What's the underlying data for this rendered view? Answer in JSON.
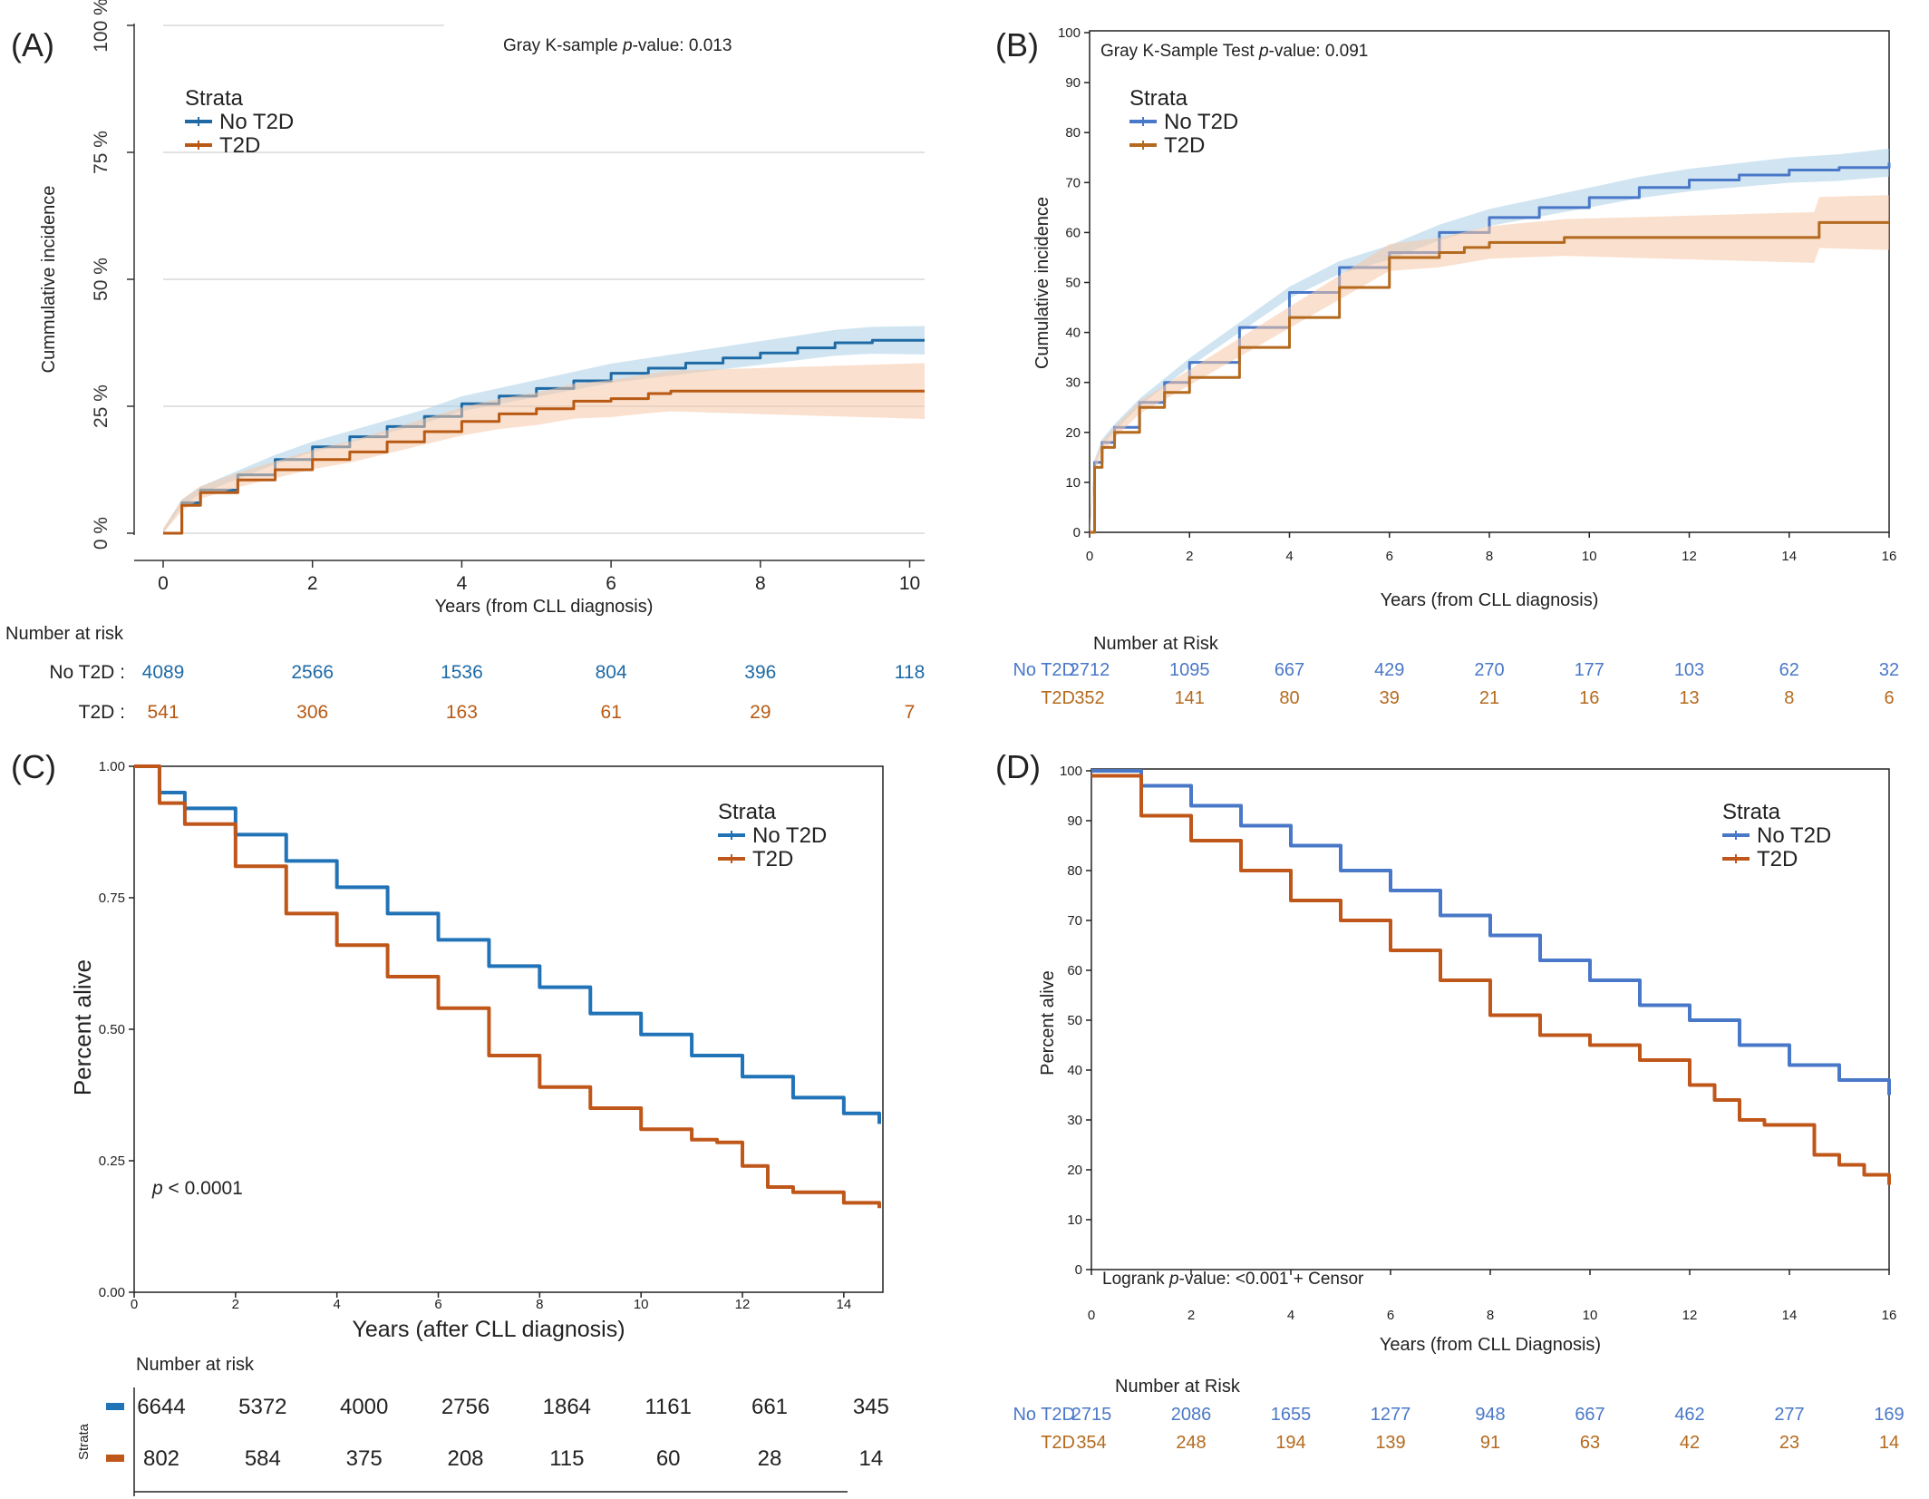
{
  "colors": {
    "blue_a": "#1f6aa5",
    "orange_a": "#b85a14",
    "blue_b": "#4a78c8",
    "orange_b": "#b46a1e",
    "blue_c": "#2173b8",
    "orange_c": "#c0571a",
    "band_blue": "#a9cfe6",
    "band_orange": "#f6c7a6"
  },
  "chart_data": [
    {
      "panel": "(A)",
      "type": "line",
      "annotation": {
        "prefix": "Gray K-sample ",
        "p": "p",
        "suffix": "-value: 0.013"
      },
      "ylabel": "Cummulative incidence",
      "xlabel": "Years (from CLL diagnosis)",
      "xlim": [
        0,
        10.2
      ],
      "ylim": [
        0,
        100
      ],
      "xticks": [
        "0",
        "2",
        "4",
        "6",
        "8",
        "10"
      ],
      "yticks": [
        "0 %",
        "25 %",
        "50 %",
        "75 %",
        "100 %"
      ],
      "grid": true,
      "legend": {
        "title": "Strata",
        "position": "top-left",
        "entries": [
          "No T2D",
          "T2D"
        ]
      },
      "series": [
        {
          "name": "No T2D",
          "color": "blue_a",
          "ci": true,
          "x": [
            0,
            0.25,
            0.5,
            1,
            1.5,
            2,
            2.5,
            3,
            3.5,
            4,
            4.5,
            5,
            5.5,
            6,
            6.5,
            7,
            7.5,
            8,
            8.5,
            9,
            9.5,
            10,
            10.2
          ],
          "y": [
            0,
            6,
            8.5,
            11.5,
            14.5,
            17,
            19,
            21,
            23,
            25.5,
            27,
            28.5,
            30,
            31.5,
            32.5,
            33.5,
            34.5,
            35.5,
            36.5,
            37.5,
            38,
            38,
            38
          ]
        },
        {
          "name": "T2D",
          "color": "orange_a",
          "ci": true,
          "x": [
            0,
            0.25,
            0.5,
            1,
            1.5,
            2,
            2.5,
            3,
            3.5,
            4,
            4.5,
            5,
            5.5,
            6,
            6.5,
            6.8,
            8,
            10.2
          ],
          "y": [
            0,
            5.5,
            8,
            10.5,
            12.5,
            14.5,
            16,
            18,
            20,
            22,
            23.5,
            24.5,
            26,
            26.5,
            27.5,
            28,
            28,
            28
          ]
        }
      ],
      "risk_table": {
        "title": "Number at risk",
        "rows": [
          {
            "label": "No T2D :",
            "values": [
              "4089",
              "2566",
              "1536",
              "804",
              "396",
              "118"
            ]
          },
          {
            "label": "T2D :",
            "values": [
              "541",
              "306",
              "163",
              "61",
              "29",
              "7"
            ]
          }
        ]
      }
    },
    {
      "panel": "(B)",
      "type": "line",
      "annotation": {
        "prefix": "Gray K-Sample Test ",
        "p": "p",
        "suffix": "-value: 0.091"
      },
      "ylabel": "Cumulative incidence",
      "xlabel": "Years (from CLL diagnosis)",
      "xlim": [
        0,
        16
      ],
      "ylim": [
        0,
        100
      ],
      "xticks": [
        "0",
        "2",
        "4",
        "6",
        "8",
        "10",
        "12",
        "14",
        "16"
      ],
      "yticks": [
        "0",
        "10",
        "20",
        "30",
        "40",
        "50",
        "60",
        "70",
        "80",
        "90",
        "100"
      ],
      "grid": false,
      "legend": {
        "title": "Strata",
        "position": "top-left",
        "entries": [
          "No T2D",
          "T2D"
        ]
      },
      "series": [
        {
          "name": "No T2D",
          "color": "blue_b",
          "ci": true,
          "x": [
            0,
            0.1,
            0.25,
            0.5,
            1,
            1.5,
            2,
            3,
            4,
            5,
            6,
            7,
            8,
            9,
            10,
            11,
            12,
            13,
            14,
            15,
            16
          ],
          "y": [
            0,
            14,
            18,
            21,
            26,
            30,
            34,
            41,
            48,
            53,
            56,
            60,
            63,
            65,
            67,
            69,
            70.5,
            71.5,
            72.5,
            73,
            74
          ]
        },
        {
          "name": "T2D",
          "color": "orange_b",
          "ci": true,
          "x": [
            0,
            0.1,
            0.25,
            0.5,
            1,
            1.5,
            2,
            3,
            4,
            5,
            6,
            7,
            7.5,
            8,
            9.5,
            14.5,
            14.6,
            16
          ],
          "y": [
            0,
            13,
            17,
            20,
            25,
            28,
            31,
            37,
            43,
            49,
            55,
            56,
            57,
            58,
            59,
            59,
            62,
            62
          ]
        }
      ],
      "risk_table": {
        "title": "Number at Risk",
        "rows": [
          {
            "label": "No T2D",
            "values": [
              "2712",
              "1095",
              "667",
              "429",
              "270",
              "177",
              "103",
              "62",
              "32"
            ]
          },
          {
            "label": "T2D",
            "values": [
              "352",
              "141",
              "80",
              "39",
              "21",
              "16",
              "13",
              "8",
              "6"
            ]
          }
        ]
      }
    },
    {
      "panel": "(C)",
      "type": "line",
      "annotation": {
        "prefix": "",
        "p": "p",
        "suffix": " < 0.0001"
      },
      "ylabel": "Percent alive",
      "xlabel": "Years (after CLL diagnosis)",
      "xlim": [
        0,
        14.7
      ],
      "ylim": [
        0,
        1
      ],
      "xticks": [
        "0",
        "2",
        "4",
        "6",
        "8",
        "10",
        "12",
        "14"
      ],
      "yticks": [
        "0.00",
        "0.25",
        "0.50",
        "0.75",
        "1.00"
      ],
      "grid": false,
      "legend": {
        "title": "Strata",
        "position": "top-right",
        "entries": [
          "No T2D",
          "T2D"
        ]
      },
      "series": [
        {
          "name": "No T2D",
          "color": "blue_c",
          "ci": false,
          "x": [
            0,
            0.5,
            1,
            2,
            3,
            4,
            5,
            6,
            7,
            8,
            9,
            10,
            11,
            12,
            13,
            14,
            14.7
          ],
          "y": [
            1,
            0.95,
            0.92,
            0.87,
            0.82,
            0.77,
            0.72,
            0.67,
            0.62,
            0.58,
            0.53,
            0.49,
            0.45,
            0.41,
            0.37,
            0.34,
            0.32
          ]
        },
        {
          "name": "T2D",
          "color": "orange_c",
          "ci": false,
          "x": [
            0,
            0.5,
            1,
            2,
            3,
            4,
            5,
            6,
            7,
            8,
            9,
            10,
            11,
            11.5,
            12,
            12.5,
            13,
            13.5,
            14,
            14.7
          ],
          "y": [
            1,
            0.93,
            0.89,
            0.81,
            0.72,
            0.66,
            0.6,
            0.54,
            0.45,
            0.39,
            0.35,
            0.31,
            0.29,
            0.285,
            0.24,
            0.2,
            0.19,
            0.19,
            0.17,
            0.16
          ]
        }
      ],
      "risk_table": {
        "title": "Number at risk",
        "side_label": "Strata",
        "rows": [
          {
            "label": "",
            "values": [
              "6644",
              "5372",
              "4000",
              "2756",
              "1864",
              "1161",
              "661",
              "345"
            ]
          },
          {
            "label": "",
            "values": [
              "802",
              "584",
              "375",
              "208",
              "115",
              "60",
              "28",
              "14"
            ]
          }
        ]
      }
    },
    {
      "panel": "(D)",
      "type": "line",
      "annotation": {
        "prefix": "Logrank ",
        "p": "p",
        "suffix": "-value:  <0.001 + Censor"
      },
      "ylabel": "Percent alive",
      "xlabel": "Years (from CLL Diagnosis)",
      "xlim": [
        0,
        16
      ],
      "ylim": [
        0,
        100
      ],
      "xticks": [
        "0",
        "2",
        "4",
        "6",
        "8",
        "10",
        "12",
        "14",
        "16"
      ],
      "yticks": [
        "0",
        "10",
        "20",
        "30",
        "40",
        "50",
        "60",
        "70",
        "80",
        "90",
        "100"
      ],
      "grid": false,
      "legend": {
        "title": "Strata",
        "position": "top-right",
        "entries": [
          "No T2D",
          "T2D"
        ]
      },
      "series": [
        {
          "name": "No T2D",
          "color": "blue_b",
          "ci": false,
          "x": [
            0,
            1,
            2,
            3,
            4,
            5,
            6,
            7,
            8,
            9,
            10,
            11,
            12,
            13,
            14,
            15,
            16
          ],
          "y": [
            100,
            97,
            93,
            89,
            85,
            80,
            76,
            71,
            67,
            62,
            58,
            53,
            50,
            45,
            41,
            38,
            35
          ]
        },
        {
          "name": "T2D",
          "color": "orange_c",
          "ci": false,
          "x": [
            0,
            1,
            2,
            3,
            4,
            5,
            6,
            7,
            8,
            9,
            10,
            11,
            12,
            12.5,
            13,
            13.5,
            14,
            14.5,
            15,
            15.5,
            16
          ],
          "y": [
            99,
            91,
            86,
            80,
            74,
            70,
            64,
            58,
            51,
            47,
            45,
            42,
            37,
            34,
            30,
            29,
            29,
            23,
            21,
            19,
            17
          ]
        }
      ],
      "risk_table": {
        "title": "Number at Risk",
        "rows": [
          {
            "label": "No T2D",
            "values": [
              "2715",
              "2086",
              "1655",
              "1277",
              "948",
              "667",
              "462",
              "277",
              "169"
            ]
          },
          {
            "label": "T2D",
            "values": [
              "354",
              "248",
              "194",
              "139",
              "91",
              "63",
              "42",
              "23",
              "14"
            ]
          }
        ]
      }
    }
  ]
}
